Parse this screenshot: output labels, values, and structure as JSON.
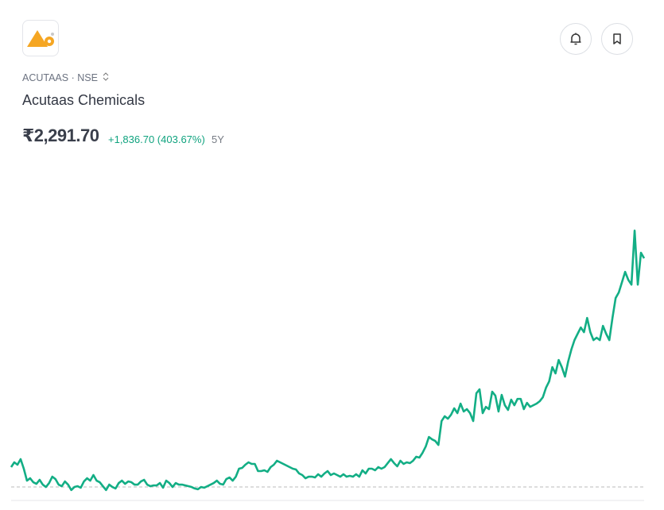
{
  "header": {
    "ticker": "ACUTAAS · NSE",
    "name": "Acutaas Chemicals",
    "price": "₹2,291.70",
    "change": "+1,836.70 (403.67%)",
    "period": "5Y"
  },
  "chart_data": {
    "type": "line",
    "color": "#13ae85",
    "ylim": [
      200,
      2600
    ],
    "values": [
      455,
      497,
      476,
      525,
      441,
      336,
      357,
      322,
      308,
      343,
      301,
      280,
      315,
      371,
      350,
      301,
      287,
      329,
      301,
      253,
      280,
      287,
      274,
      329,
      357,
      336,
      385,
      336,
      322,
      287,
      253,
      301,
      280,
      267,
      315,
      336,
      308,
      329,
      322,
      301,
      301,
      329,
      343,
      301,
      287,
      294,
      294,
      315,
      274,
      336,
      315,
      280,
      315,
      301,
      301,
      294,
      287,
      280,
      267,
      260,
      280,
      274,
      287,
      301,
      315,
      336,
      308,
      301,
      350,
      364,
      336,
      371,
      441,
      448,
      476,
      497,
      483,
      483,
      420,
      420,
      427,
      413,
      455,
      476,
      511,
      497,
      483,
      469,
      455,
      441,
      434,
      399,
      385,
      357,
      371,
      371,
      364,
      392,
      371,
      399,
      420,
      385,
      399,
      385,
      371,
      392,
      371,
      378,
      371,
      392,
      371,
      427,
      399,
      441,
      441,
      427,
      455,
      441,
      455,
      490,
      525,
      490,
      462,
      511,
      483,
      497,
      490,
      511,
      546,
      539,
      581,
      636,
      720,
      699,
      685,
      650,
      860,
      902,
      881,
      916,
      972,
      930,
      1013,
      944,
      965,
      930,
      860,
      1104,
      1139,
      930,
      985,
      965,
      1118,
      1083,
      944,
      1090,
      999,
      958,
      1048,
      999,
      1055,
      1055,
      965,
      1020,
      985,
      999,
      1013,
      1034,
      1069,
      1153,
      1209,
      1334,
      1279,
      1397,
      1334,
      1251,
      1383,
      1488,
      1572,
      1628,
      1683,
      1642,
      1767,
      1642,
      1572,
      1593,
      1572,
      1697,
      1628,
      1572,
      1767,
      1942,
      1991,
      2081,
      2172,
      2102,
      2060,
      2535,
      2060,
      2340,
      2291.7
    ]
  }
}
